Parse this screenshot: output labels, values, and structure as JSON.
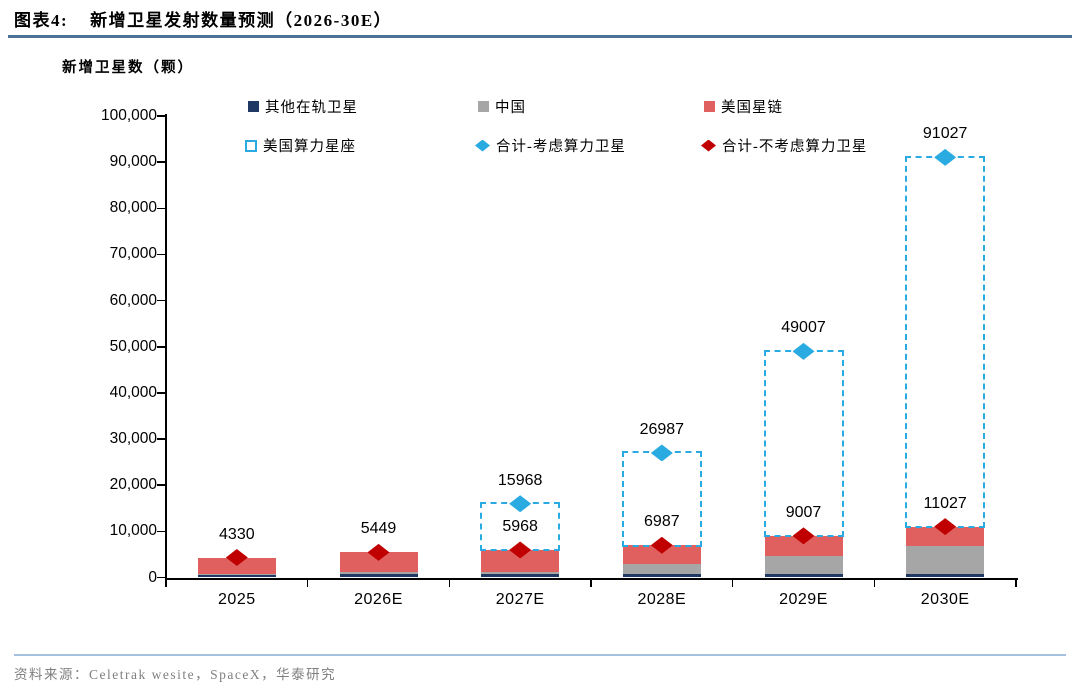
{
  "page": {
    "title_prefix": "图表4:",
    "title": "新增卫星发射数量预测（2026-30E）",
    "axis_unit_label": "新增卫星数（颗）",
    "source": "资料来源：Celetrak wesite，SpaceX，华泰研究"
  },
  "colors": {
    "navy": "#1F3864",
    "gray": "#A6A6A6",
    "red": "#E06060",
    "cyan": "#29ABE2",
    "dark_red": "#C00000",
    "axis": "#000000",
    "title_rule": "#4E7296",
    "footer_rule": "#A6C1DE",
    "footer_text": "#7F7F7F"
  },
  "legend": {
    "items": [
      {
        "key": "others",
        "label": "其他在轨卫星",
        "marker": "square",
        "color": "#1F3864"
      },
      {
        "key": "china",
        "label": "中国",
        "marker": "square",
        "color": "#A6A6A6"
      },
      {
        "key": "starlink",
        "label": "美国星链",
        "marker": "square",
        "color": "#E06060"
      },
      {
        "key": "compute",
        "label": "美国算力星座",
        "marker": "dashed-square",
        "color": "#29ABE2"
      },
      {
        "key": "total-incl",
        "label": "合计-考虑算力卫星",
        "marker": "diamond",
        "color": "#29ABE2"
      },
      {
        "key": "total-excl",
        "label": "合计-不考虑算力卫星",
        "marker": "diamond",
        "color": "#C00000"
      }
    ]
  },
  "chart_data": {
    "type": "bar",
    "stacked": true,
    "grid": false,
    "legend_position": "top",
    "title": "新增卫星发射数量预测（2026-30E）",
    "ylabel": "新增卫星数（颗）",
    "categories": [
      "2025",
      "2026E",
      "2027E",
      "2028E",
      "2029E",
      "2030E"
    ],
    "segments_estimated": true,
    "bar_series": [
      {
        "name": "其他在轨卫星",
        "color": "#1F3864",
        "values": [
          800,
          800,
          800,
          800,
          800,
          800
        ]
      },
      {
        "name": "中国",
        "color": "#A6A6A6",
        "values": [
          30,
          350,
          400,
          2200,
          3900,
          6000
        ]
      },
      {
        "name": "美国星链",
        "color": "#E06060",
        "values": [
          3500,
          4299,
          4768,
          3987,
          4307,
          4227
        ]
      }
    ],
    "dashed_overlay_series": {
      "name": "美国算力星座",
      "color": "#29ABE2",
      "values": [
        0,
        0,
        10000,
        20000,
        40000,
        80000
      ]
    },
    "marker_series": [
      {
        "name": "合计-不考虑算力卫星",
        "color": "#C00000",
        "shape": "diamond",
        "values": [
          4330,
          5449,
          5968,
          6987,
          9007,
          11027
        ],
        "labels": [
          "4330",
          "5449",
          "5968",
          "6987",
          "9007",
          "11027"
        ]
      },
      {
        "name": "合计-考虑算力卫星",
        "color": "#29ABE2",
        "shape": "diamond",
        "values": [
          null,
          null,
          15968,
          26987,
          49007,
          91027
        ],
        "labels": [
          null,
          null,
          "15968",
          "26987",
          "49007",
          "91027"
        ]
      }
    ],
    "ylim": [
      0,
      100000
    ],
    "ytick_step": 10000,
    "ytick_labels": [
      "0",
      "10,000",
      "20,000",
      "30,000",
      "40,000",
      "50,000",
      "60,000",
      "70,000",
      "80,000",
      "90,000",
      "100,000"
    ]
  }
}
